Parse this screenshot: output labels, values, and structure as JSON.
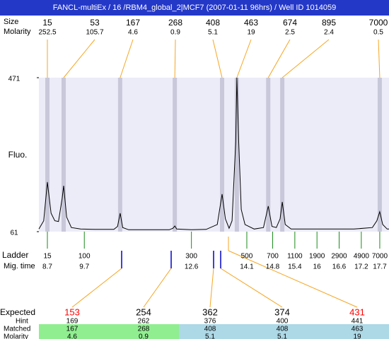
{
  "title": "FANCL-multiEx / 16 /RBM4_global_2|MCF7 (2007-01-11 96hrs) / Well ID 1014059",
  "chart_data": {
    "type": "line",
    "ylabel": "Fluo.",
    "color": "#000000",
    "x": [
      8.47,
      8.6,
      8.7,
      8.8,
      8.9,
      9.0,
      9.1,
      9.14,
      9.22,
      9.35,
      9.6,
      10.0,
      10.5,
      10.6,
      10.67,
      10.74,
      10.9,
      11.5,
      12.0,
      12.1,
      12.15,
      12.2,
      12.6,
      13.0,
      13.3,
      13.43,
      13.52,
      13.62,
      13.7,
      13.8,
      13.83,
      13.88,
      13.95,
      14.05,
      14.3,
      14.55,
      14.68,
      14.78,
      14.9,
      15.0,
      15.06,
      15.14,
      15.3,
      15.8,
      16.5,
      17.0,
      17.5,
      17.62,
      17.7,
      17.78,
      17.9,
      17.95
    ],
    "values": [
      68,
      90,
      193,
      110,
      90,
      88,
      150,
      183,
      100,
      72,
      68,
      67,
      67,
      75,
      110,
      72,
      66,
      66,
      66,
      70,
      76,
      68,
      66,
      67,
      80,
      161,
      95,
      70,
      90,
      300,
      471,
      300,
      120,
      80,
      68,
      72,
      129,
      75,
      72,
      95,
      140,
      80,
      68,
      68,
      68,
      68,
      72,
      90,
      114,
      80,
      68,
      68
    ],
    "xlim": [
      8.47,
      17.95
    ],
    "ylim": [
      61,
      471
    ],
    "yticks": [
      61,
      471
    ]
  },
  "peaks": {
    "label": "Size",
    "molarity_label": "Molarity",
    "sizes": [
      15,
      53,
      167,
      268,
      408,
      463,
      674,
      895,
      7000
    ],
    "molarity": [
      252.5,
      105.7,
      4.6,
      0.9,
      5.1,
      19,
      2.5,
      2.4,
      0.5
    ],
    "mig_times": [
      8.7,
      9.14,
      10.67,
      12.15,
      13.43,
      13.83,
      14.68,
      15.06,
      17.7
    ]
  },
  "ladder": {
    "label": "Ladder",
    "mig_time_label": "Mig. time",
    "sizes": [
      15,
      100,
      300,
      500,
      700,
      1100,
      1900,
      2900,
      4900,
      7000
    ],
    "mig_times": [
      8.7,
      9.7,
      12.6,
      14.1,
      14.8,
      15.4,
      16,
      16.6,
      17.2,
      17.7
    ]
  },
  "expected": {
    "label": "Expected",
    "hint_label": "Hint",
    "matched_label": "Matched",
    "molarity_label": "Molarity",
    "expected": [
      153,
      254,
      362,
      374,
      431
    ],
    "expected_colors": [
      "#ff0000",
      "#000000",
      "#000000",
      "#000000",
      "#ff0000"
    ],
    "hint": [
      169,
      262,
      376,
      400,
      441
    ],
    "matched": [
      167,
      268,
      408,
      408,
      463
    ],
    "molarity": [
      4.6,
      0.9,
      5.1,
      5.1,
      19
    ],
    "match_colors": [
      "#90ee90",
      "#90ee90",
      "#add8e6",
      "#add8e6",
      "#add8e6"
    ]
  }
}
